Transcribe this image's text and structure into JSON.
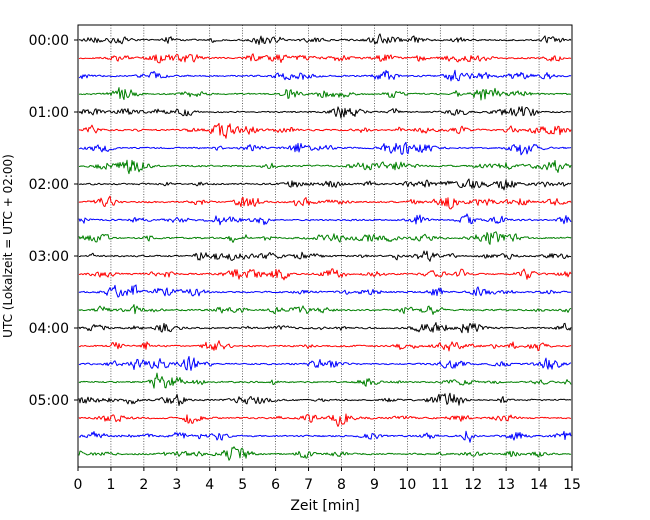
{
  "chart_data": {
    "type": "line",
    "title": "",
    "xlabel": "Zeit  [min]",
    "ylabel": "UTC (Lokalzeit = UTC + 02:00)",
    "xlim": [
      0,
      15
    ],
    "x_ticks": [
      "0",
      "1",
      "2",
      "3",
      "4",
      "5",
      "6",
      "7",
      "8",
      "9",
      "10",
      "11",
      "12",
      "13",
      "14",
      "15"
    ],
    "y_ticks": [
      "00:00",
      "01:00",
      "02:00",
      "03:00",
      "04:00",
      "05:00"
    ],
    "grid": "vertical dotted lines at each minute",
    "trace_interval_minutes": 15,
    "trace_count": 24,
    "trace_colors": [
      "#000000",
      "#ff0000",
      "#0000ff",
      "#008000"
    ],
    "trace_start_times": [
      "00:00",
      "00:15",
      "00:30",
      "00:45",
      "01:00",
      "01:15",
      "01:30",
      "01:45",
      "02:00",
      "02:15",
      "02:30",
      "02:45",
      "03:00",
      "03:15",
      "03:30",
      "03:45",
      "04:00",
      "04:15",
      "04:30",
      "04:45",
      "05:00",
      "05:15",
      "05:30",
      "05:45"
    ]
  }
}
